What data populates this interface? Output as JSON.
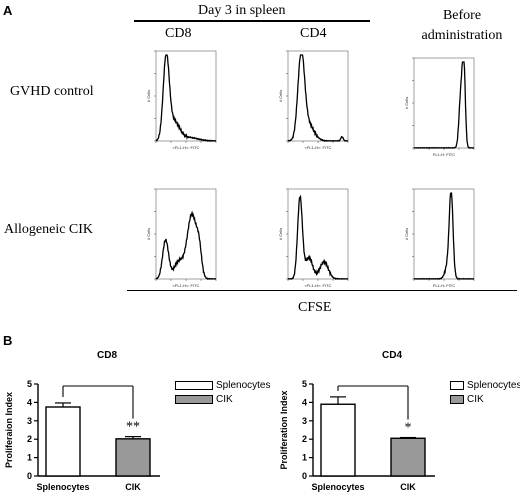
{
  "panelA": {
    "letter": "A",
    "top_header": "Day 3 in spleen",
    "col_cd8": "CD8",
    "col_cd4": "CD4",
    "col_before_1": "Before",
    "col_before_2": "administration",
    "row_gvhd": "GVHD control",
    "row_cik": "Allogeneic CIK",
    "bottom_axis_label": "CFSE",
    "histogram_xlabel": "<FL1-H>: FITC",
    "histogram_xlabel_right": "FL1-H: FITC",
    "histogram_ylabel": "# Cells",
    "histogram_ylabel_right": "# Cells"
  },
  "panelB": {
    "letter": "B",
    "charts": [
      {
        "title": "CD8",
        "ylabel": "Proliferaion Index",
        "categories": [
          "Splenocytes",
          "CIK"
        ],
        "significance": "**"
      },
      {
        "title": "CD4",
        "ylabel": "Proliferation Index",
        "categories": [
          "Splenocytes",
          "CIK"
        ],
        "significance": "*"
      }
    ],
    "legend": {
      "splenocytes": "Splenocytes",
      "cik": "CIK"
    }
  },
  "colors": {
    "splenocytes_fill": "#ffffff",
    "cik_fill": "#999999",
    "line": "#000000"
  },
  "chart_data": [
    {
      "type": "bar",
      "title": "CD8",
      "xlabel": "",
      "ylabel": "Proliferaion Index",
      "categories": [
        "Splenocytes",
        "CIK"
      ],
      "series": [
        {
          "values": [
            3.75,
            2.02
          ],
          "errors": [
            0.22,
            0.12
          ]
        }
      ],
      "ylim": [
        0,
        5
      ],
      "yticks": [
        0,
        1,
        2,
        3,
        4,
        5
      ],
      "grid": false,
      "annotation": "**"
    },
    {
      "type": "bar",
      "title": "CD4",
      "xlabel": "",
      "ylabel": "Proliferation Index",
      "categories": [
        "Splenocytes",
        "CIK"
      ],
      "series": [
        {
          "values": [
            3.9,
            2.05
          ],
          "errors": [
            0.4,
            0.04
          ]
        }
      ],
      "ylim": [
        0,
        5
      ],
      "yticks": [
        0,
        1,
        2,
        3,
        4,
        5
      ],
      "grid": false,
      "annotation": "*"
    }
  ]
}
